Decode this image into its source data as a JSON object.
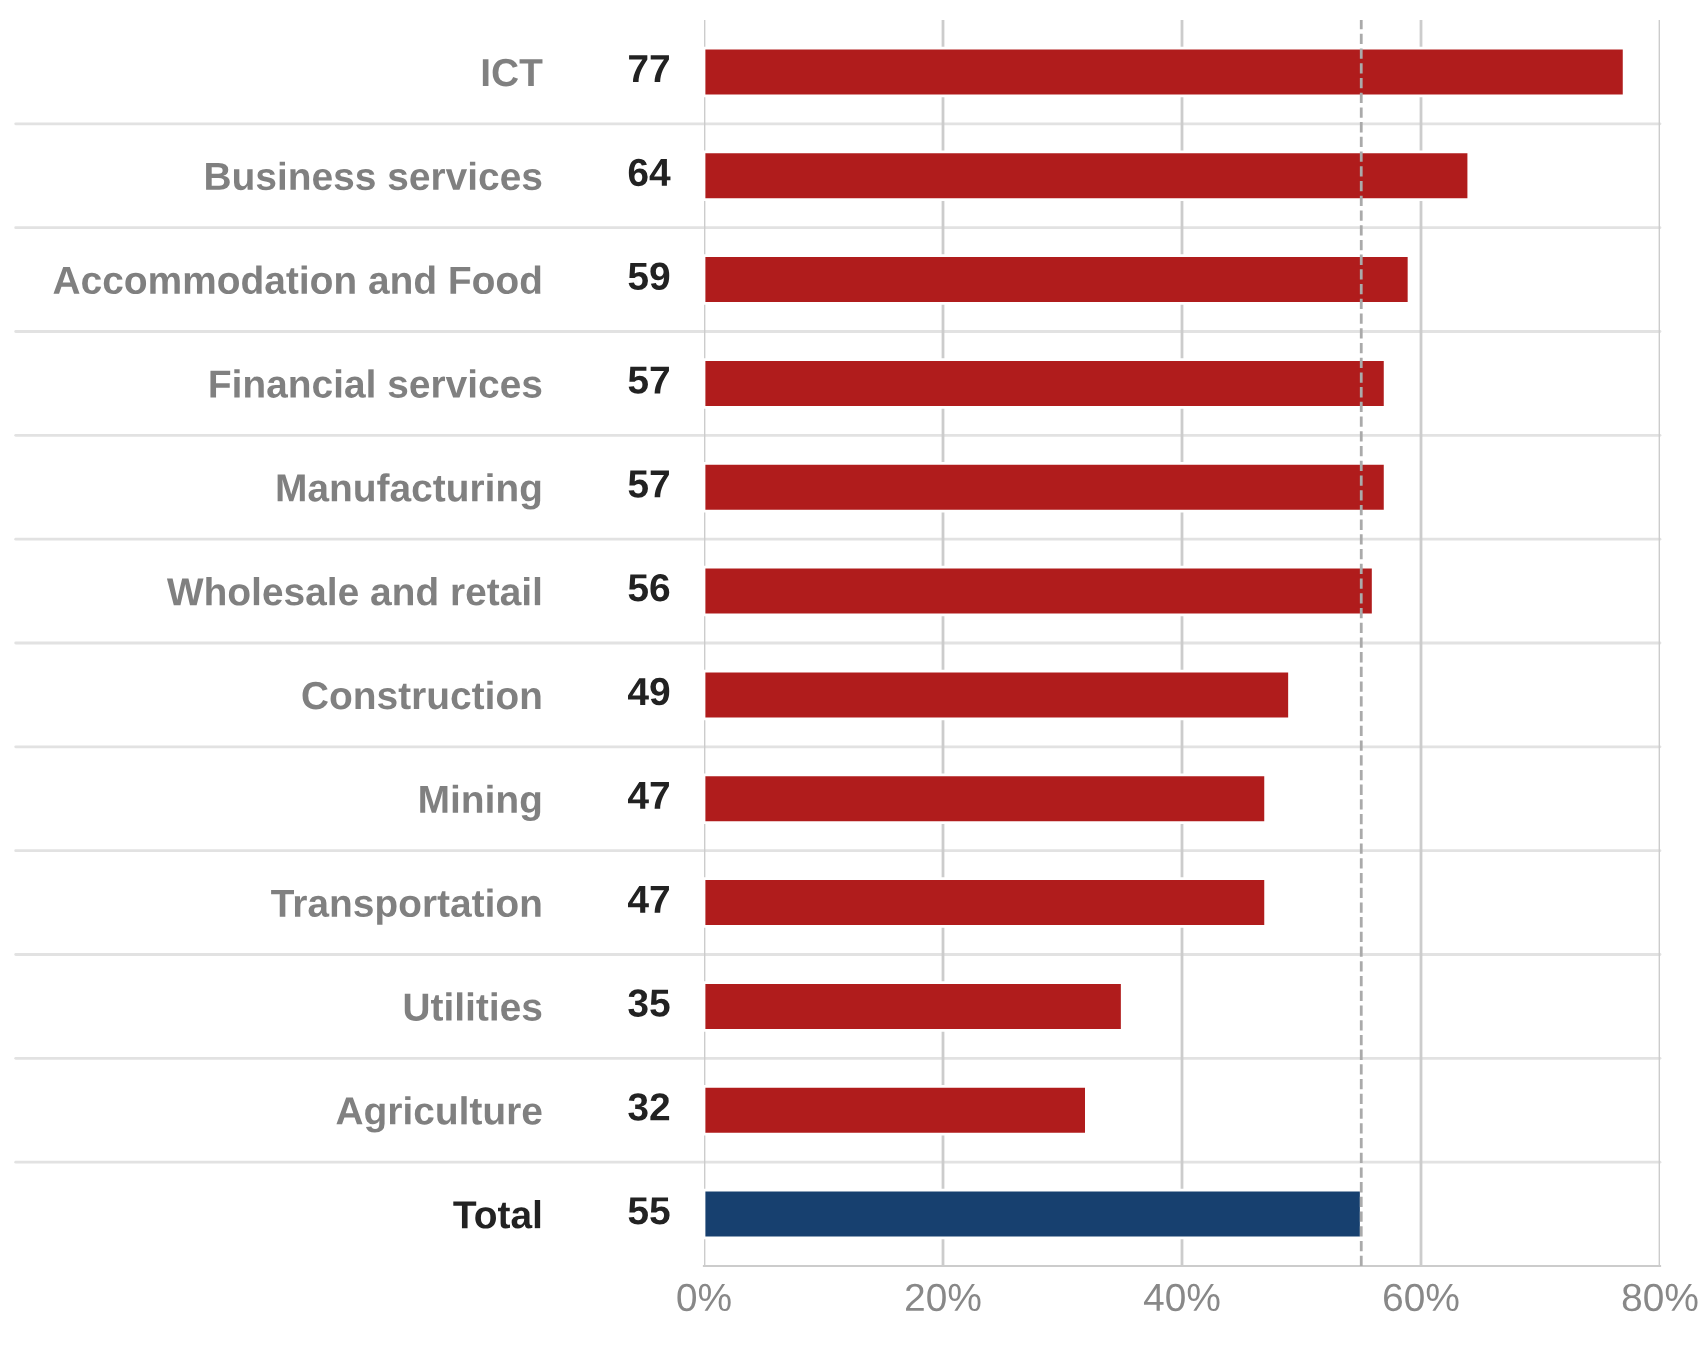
{
  "chart_data": {
    "type": "bar",
    "orientation": "horizontal",
    "categories": [
      "ICT",
      "Business services",
      "Accommodation and Food",
      "Financial services",
      "Manufacturing",
      "Wholesale and retail",
      "Construction",
      "Mining",
      "Transportation",
      "Utilities",
      "Agriculture",
      "Total"
    ],
    "values": [
      77,
      64,
      59,
      57,
      57,
      56,
      49,
      47,
      47,
      35,
      32,
      55
    ],
    "colors": [
      "#b01c1c",
      "#b01c1c",
      "#b01c1c",
      "#b01c1c",
      "#b01c1c",
      "#b01c1c",
      "#b01c1c",
      "#b01c1c",
      "#b01c1c",
      "#b01c1c",
      "#b01c1c",
      "#17406f"
    ],
    "data_labels": true,
    "xlim": [
      0,
      80
    ],
    "xticks": [
      {
        "value": 0,
        "label": "0%"
      },
      {
        "value": 20,
        "label": "20%"
      },
      {
        "value": 40,
        "label": "40%"
      },
      {
        "value": 60,
        "label": "60%"
      },
      {
        "value": 80,
        "label": "80%"
      }
    ],
    "ref_lines": [
      {
        "axis": "x",
        "value": 55,
        "color": "#aaaaaa",
        "line_style": "dashed"
      }
    ],
    "grid": "x"
  }
}
